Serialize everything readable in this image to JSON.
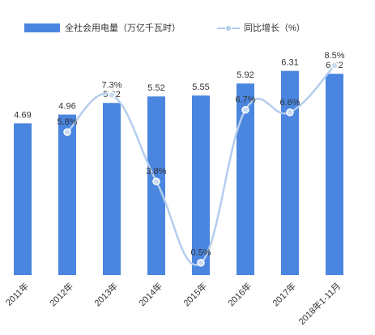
{
  "chart_data": {
    "type": "bar_line",
    "categories": [
      "2011年",
      "2012年",
      "2013年",
      "2014年",
      "2015年",
      "2016年",
      "2017年",
      "2018年1-11月"
    ],
    "series": [
      {
        "name": "全社会用电量（万亿千瓦时）",
        "color": "#4a86e0",
        "type": "bar",
        "values": [
          4.69,
          4.96,
          5.32,
          5.52,
          5.55,
          5.92,
          6.31,
          6.22
        ]
      },
      {
        "name": "同比增长（%）",
        "color": "#b3cdee",
        "type": "line",
        "axis": "y2",
        "values": [
          null,
          5.8,
          7.3,
          3.8,
          0.5,
          6.7,
          6.6,
          8.5
        ],
        "value_labels": [
          null,
          "5.8%",
          "7.3%",
          "3.8%",
          "0.5%",
          "6.7%",
          "6.6%",
          "8.5%"
        ]
      }
    ],
    "ylim": [
      0,
      8
    ],
    "y2lim": [
      0,
      10.5
    ]
  }
}
